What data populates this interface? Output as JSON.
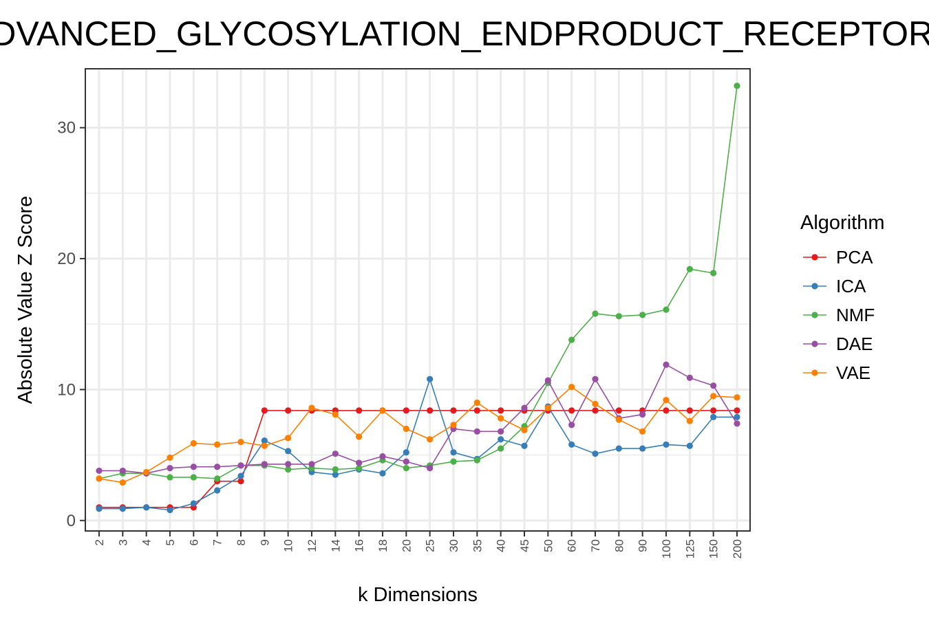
{
  "chart_data": {
    "type": "line",
    "title": "ADVANCED_GLYCOSYLATION_ENDPRODUCT_RECEPTOR",
    "xlabel": "k Dimensions",
    "ylabel": "Absolute Value Z Score",
    "categories": [
      "2",
      "3",
      "4",
      "5",
      "6",
      "7",
      "8",
      "9",
      "10",
      "12",
      "14",
      "16",
      "18",
      "20",
      "25",
      "30",
      "35",
      "40",
      "45",
      "50",
      "60",
      "70",
      "80",
      "90",
      "100",
      "125",
      "150",
      "200"
    ],
    "ylim": [
      -0.8,
      34.5
    ],
    "yticks": [
      0,
      10,
      20,
      30
    ],
    "grid": true,
    "legend": {
      "title": "Algorithm",
      "position": "right"
    },
    "series": [
      {
        "name": "PCA",
        "color": "#e41a1c",
        "values": [
          1.0,
          1.0,
          1.0,
          1.0,
          1.0,
          3.0,
          3.0,
          8.4,
          8.4,
          8.4,
          8.4,
          8.4,
          8.4,
          8.4,
          8.4,
          8.4,
          8.4,
          8.4,
          8.4,
          8.4,
          8.4,
          8.4,
          8.4,
          8.4,
          8.4,
          8.4,
          8.4,
          8.4
        ]
      },
      {
        "name": "ICA",
        "color": "#377eb8",
        "values": [
          0.9,
          0.9,
          1.0,
          0.8,
          1.3,
          2.3,
          3.4,
          6.1,
          5.3,
          3.7,
          3.5,
          3.9,
          3.6,
          5.2,
          10.8,
          5.2,
          4.7,
          6.2,
          5.7,
          8.7,
          5.8,
          5.1,
          5.5,
          5.5,
          5.8,
          5.7,
          7.9,
          7.9
        ]
      },
      {
        "name": "NMF",
        "color": "#4daf4a",
        "values": [
          3.2,
          3.6,
          3.6,
          3.3,
          3.3,
          3.2,
          4.2,
          4.2,
          3.9,
          4.0,
          3.9,
          4.0,
          4.6,
          4.0,
          4.2,
          4.5,
          4.6,
          5.5,
          7.2,
          10.5,
          13.8,
          15.8,
          15.6,
          15.7,
          16.1,
          19.2,
          18.9,
          33.2
        ]
      },
      {
        "name": "DAE",
        "color": "#984ea3",
        "values": [
          3.8,
          3.8,
          3.6,
          4.0,
          4.1,
          4.1,
          4.2,
          4.3,
          4.3,
          4.3,
          5.1,
          4.4,
          4.9,
          4.5,
          4.0,
          7.0,
          6.8,
          6.8,
          8.6,
          10.7,
          7.3,
          10.8,
          7.8,
          8.1,
          11.9,
          10.9,
          10.3,
          7.4
        ]
      },
      {
        "name": "VAE",
        "color": "#ff7f00",
        "values": [
          3.2,
          2.9,
          3.7,
          4.8,
          5.9,
          5.8,
          6.0,
          5.7,
          6.3,
          8.6,
          8.1,
          6.4,
          8.4,
          7.0,
          6.2,
          7.3,
          9.0,
          7.8,
          6.9,
          8.6,
          10.2,
          8.9,
          7.7,
          6.8,
          9.2,
          7.6,
          9.5,
          9.4
        ]
      }
    ]
  }
}
